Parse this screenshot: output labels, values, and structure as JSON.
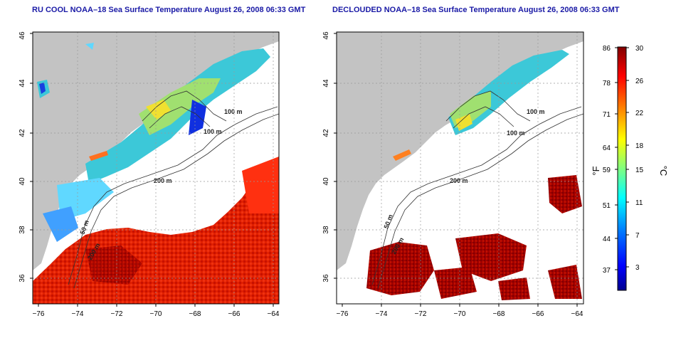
{
  "titles": {
    "left": "RU COOL NOAA–18 Sea Surface Temperature August 26, 2008 06:33 GMT",
    "right": "DECLOUDED NOAA–18 Sea Surface Temperature August 26, 2008 06:33 GMT"
  },
  "maps": [
    {
      "id": "left",
      "lon_ticks": [
        "−76",
        "−74",
        "−72",
        "−70",
        "−68",
        "−66",
        "−64"
      ],
      "lat_ticks": [
        "36",
        "38",
        "40",
        "42",
        "44",
        "46"
      ],
      "contour_labels": [
        "100 m",
        "100 m",
        "200 m",
        "50 m",
        "200 m"
      ]
    },
    {
      "id": "right",
      "lon_ticks": [
        "−76",
        "−74",
        "−72",
        "−70",
        "−68",
        "−66",
        "−64"
      ],
      "lat_ticks": [
        "36",
        "38",
        "40",
        "42",
        "44",
        "46"
      ],
      "contour_labels": [
        "100 m",
        "100 m",
        "200 m",
        "50 m",
        "200 m"
      ]
    }
  ],
  "colorbar": {
    "fahrenheit_label": "°F",
    "celsius_label": "°C",
    "fahrenheit_ticks": [
      "86",
      "78",
      "71",
      "64",
      "59",
      "51",
      "44",
      "37"
    ],
    "celsius_ticks": [
      "30",
      "26",
      "22",
      "18",
      "15",
      "11",
      "7",
      "3"
    ],
    "colors": [
      "#00008f",
      "#0000ff",
      "#0080ff",
      "#00ffff",
      "#80ff80",
      "#ffff00",
      "#ff8000",
      "#ff0000",
      "#800000"
    ]
  },
  "colors": {
    "land": "#c3c3c3",
    "title": "#1a1aa6"
  }
}
